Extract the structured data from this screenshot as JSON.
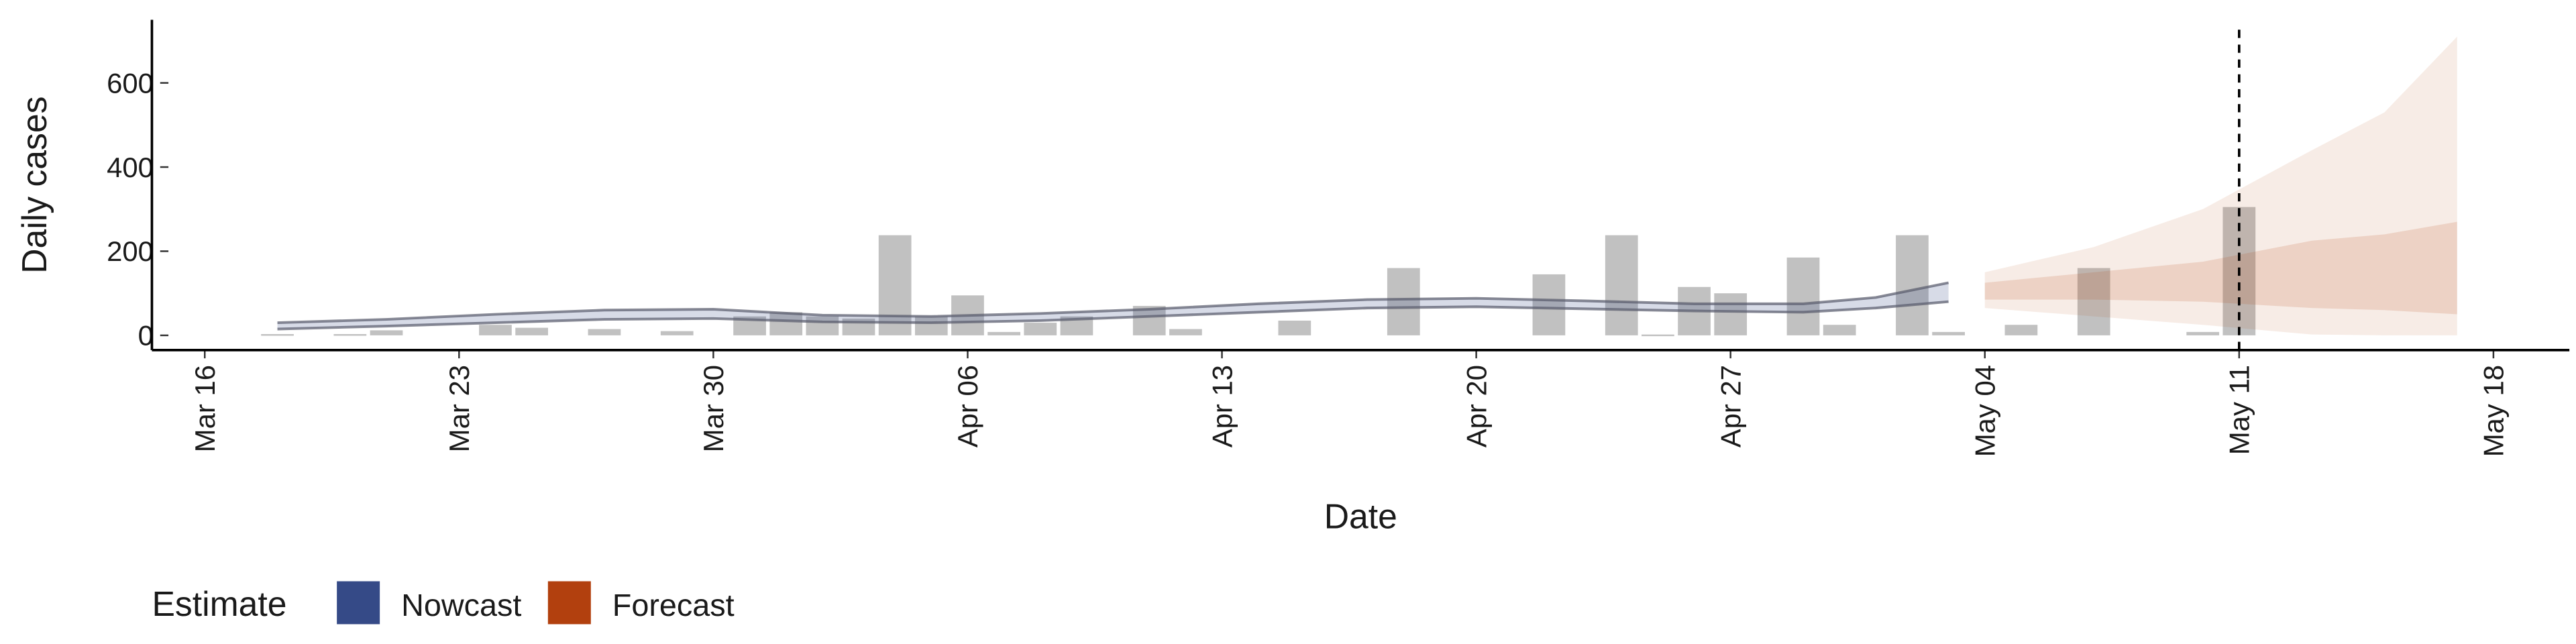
{
  "chart_data": {
    "type": "bar",
    "x_label": "Date",
    "y_label": "Daily cases",
    "xlim": [
      "Mar 15",
      "May 20"
    ],
    "ylim": [
      -35,
      750
    ],
    "xticks": [
      "Mar 16",
      "Mar 23",
      "Mar 30",
      "Apr 06",
      "Apr 13",
      "Apr 20",
      "Apr 27",
      "May 04",
      "May 11",
      "May 18"
    ],
    "yticks": [
      0,
      200,
      400,
      600
    ],
    "bars": {
      "color": "#a6a6a6",
      "x": [
        "Mar 18",
        "Mar 20",
        "Mar 21",
        "Mar 24",
        "Mar 25",
        "Mar 27",
        "Mar 29",
        "Mar 31",
        "Apr 01",
        "Apr 02",
        "Apr 03",
        "Apr 04",
        "Apr 05",
        "Apr 06",
        "Apr 07",
        "Apr 08",
        "Apr 09",
        "Apr 11",
        "Apr 12",
        "Apr 15",
        "Apr 18",
        "Apr 22",
        "Apr 24",
        "Apr 25",
        "Apr 26",
        "Apr 27",
        "Apr 29",
        "Apr 30",
        "May 02",
        "May 03",
        "May 05",
        "May 07",
        "May 10",
        "May 11"
      ],
      "values": [
        3,
        3,
        12,
        25,
        18,
        15,
        10,
        45,
        55,
        45,
        40,
        238,
        45,
        95,
        8,
        30,
        45,
        70,
        15,
        35,
        160,
        145,
        238,
        2,
        115,
        100,
        185,
        25,
        238,
        8,
        25,
        160,
        8,
        305
      ]
    },
    "series": [
      {
        "name": "Nowcast",
        "color": "#354a87",
        "x": [
          "Mar 18",
          "Mar 21",
          "Mar 24",
          "Mar 27",
          "Mar 30",
          "Apr 02",
          "Apr 05",
          "Apr 08",
          "Apr 11",
          "Apr 14",
          "Apr 17",
          "Apr 20",
          "Apr 23",
          "Apr 26",
          "Apr 29",
          "May 01",
          "May 03"
        ],
        "upper": [
          30,
          38,
          50,
          60,
          62,
          48,
          45,
          52,
          62,
          75,
          85,
          88,
          82,
          75,
          75,
          90,
          125
        ],
        "lower": [
          15,
          22,
          30,
          38,
          40,
          32,
          30,
          35,
          45,
          55,
          65,
          68,
          63,
          58,
          55,
          65,
          80
        ]
      },
      {
        "name": "Forecast",
        "color": "#b2400e",
        "x": [
          "May 04",
          "May 07",
          "May 10",
          "May 13",
          "May 15",
          "May 17"
        ],
        "upper_90": [
          150,
          210,
          300,
          440,
          530,
          710
        ],
        "lower_90": [
          65,
          45,
          25,
          2,
          0,
          0
        ],
        "upper_50": [
          125,
          150,
          175,
          225,
          240,
          270
        ],
        "lower_50": [
          85,
          85,
          80,
          65,
          60,
          50
        ]
      }
    ],
    "vline": "May 11",
    "legend_title": "Estimate",
    "legend_position": "bottom"
  }
}
